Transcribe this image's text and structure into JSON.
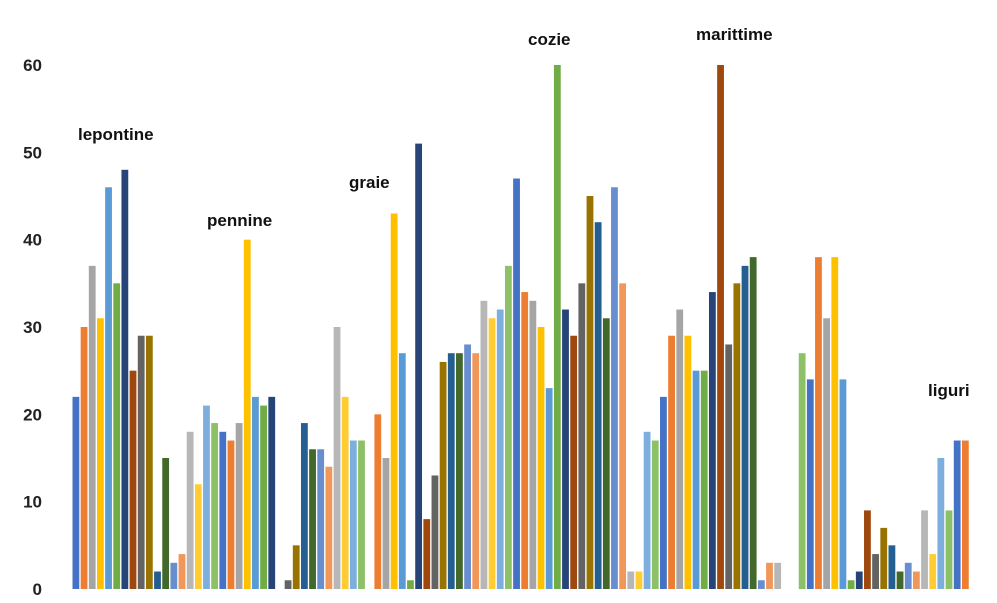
{
  "chart_data": {
    "type": "bar",
    "title": "",
    "xlabel": "",
    "ylabel": "",
    "ylim": [
      0,
      60
    ],
    "yticks": [
      0,
      10,
      20,
      30,
      40,
      50,
      60
    ],
    "grid": false,
    "legend": "none",
    "annotations": [
      "lepontine",
      "pennine",
      "graie",
      "cozie",
      "marittime",
      "liguri"
    ],
    "palette": [
      "#4472C4",
      "#ED7D31",
      "#A5A5A5",
      "#FFC000",
      "#5B9BD5",
      "#70AD47",
      "#264478",
      "#9E480E",
      "#636363",
      "#997300",
      "#255E91",
      "#43682B",
      "#698ED0",
      "#F1975A",
      "#B7B7B7",
      "#FFCD33",
      "#7CAFDD",
      "#8CC168"
    ],
    "values": [
      22,
      30,
      37,
      31,
      46,
      35,
      48,
      25,
      29,
      29,
      2,
      15,
      3,
      4,
      18,
      12,
      21,
      19,
      18,
      17,
      19,
      40,
      22,
      21,
      22,
      0,
      1,
      5,
      19,
      16,
      16,
      14,
      30,
      22,
      17,
      17,
      0,
      20,
      15,
      43,
      27,
      1,
      51,
      8,
      13,
      26,
      27,
      27,
      28,
      27,
      33,
      31,
      32,
      37,
      47,
      34,
      33,
      30,
      23,
      60,
      32,
      29,
      35,
      45,
      42,
      31,
      46,
      35,
      2,
      2,
      18,
      17,
      22,
      29,
      32,
      29,
      25,
      25,
      34,
      60,
      28,
      35,
      37,
      38,
      1,
      3,
      3,
      0,
      0,
      27,
      24,
      38,
      31,
      38,
      24,
      1,
      2,
      9,
      4,
      7,
      5,
      2,
      3,
      2,
      9,
      4,
      15,
      9,
      17,
      17
    ]
  }
}
